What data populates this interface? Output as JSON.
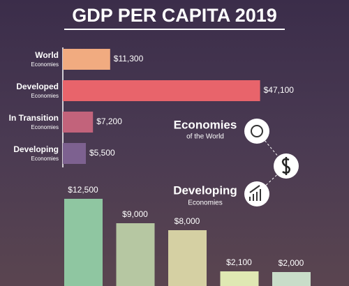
{
  "chart_data": [
    {
      "type": "hbar",
      "title": "GDP PER CAPITA 2019",
      "categories": [
        "World",
        "Developed",
        "In Transition",
        "Developing"
      ],
      "subcategories": [
        "Economies",
        "Economies",
        "Economies",
        "Economies"
      ],
      "values": [
        11300,
        47100,
        7200,
        5500
      ],
      "value_labels": [
        "$11,300",
        "$47,100",
        "$7,200",
        "$5,500"
      ],
      "colors": [
        "#f1ab80",
        "#e8646b",
        "#c2637b",
        "#7d6190"
      ],
      "xlim": [
        0,
        50000
      ]
    },
    {
      "type": "bar",
      "categories": [
        null,
        null,
        null,
        null,
        null
      ],
      "values": [
        12500,
        9000,
        8000,
        2100,
        2000
      ],
      "value_labels": [
        "$12,500",
        "$9,000",
        "$8,000",
        "$2,100",
        "$2,000"
      ],
      "colors": [
        "#8fc6a1",
        "#b6c7a2",
        "#d5d0a3",
        "#dfe8b3",
        "#c9ddc9"
      ],
      "ylim": [
        0,
        14000
      ],
      "annotations": [
        {
          "title": "Economies",
          "subtitle": "of the World"
        },
        {
          "title": "Developing",
          "subtitle": "Economies"
        }
      ]
    }
  ]
}
